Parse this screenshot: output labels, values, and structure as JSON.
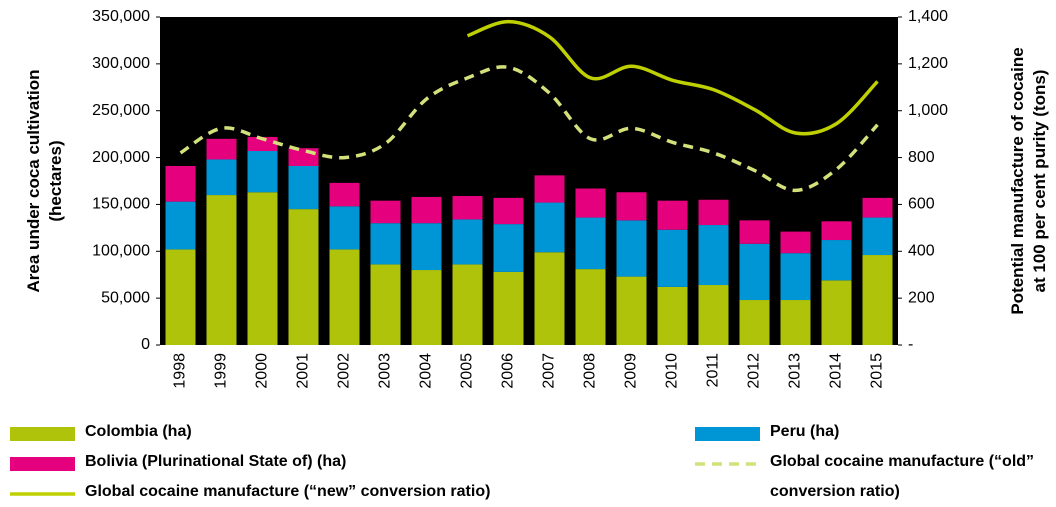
{
  "chart_data": {
    "type": "bar",
    "y_label": [
      "Area under coca cultivation",
      "(hectares)"
    ],
    "y2_label": [
      "Potential manufacture of cocaine",
      "at 100 per cent purity (tons)"
    ],
    "categories": [
      "1998",
      "1999",
      "2000",
      "2001",
      "2002",
      "2003",
      "2004",
      "2005",
      "2006",
      "2007",
      "2008",
      "2009",
      "2010",
      "2011",
      "2012",
      "2013",
      "2014",
      "2015"
    ],
    "series": [
      {
        "name": "Colombia (ha)",
        "color": "#aec30a",
        "type": "bar",
        "values": [
          102000,
          160000,
          163000,
          145000,
          102000,
          86000,
          80000,
          86000,
          78000,
          99000,
          81000,
          73000,
          62000,
          64000,
          48000,
          48000,
          69000,
          96000
        ]
      },
      {
        "name": "Peru (ha)",
        "color": "#0096d6",
        "type": "bar",
        "values": [
          51000,
          38000,
          44000,
          46000,
          46000,
          44000,
          50000,
          48000,
          51000,
          53000,
          55000,
          60000,
          61000,
          64000,
          60000,
          50000,
          43000,
          40000
        ]
      },
      {
        "name": "Bolivia (Plurinational State of) (ha)",
        "color": "#e5007e",
        "type": "bar",
        "values": [
          38000,
          22000,
          15000,
          19000,
          25000,
          24000,
          28000,
          25000,
          28000,
          29000,
          31000,
          30000,
          31000,
          27000,
          25000,
          23000,
          20000,
          21000
        ]
      },
      {
        "name": "Global cocaine manufacture (“new” conversion ratio)",
        "color": "#bfd000",
        "type": "line",
        "axis": "y2",
        "dashed": false,
        "values": [
          null,
          null,
          null,
          null,
          null,
          null,
          null,
          1320,
          1380,
          1315,
          1140,
          1190,
          1130,
          1090,
          1005,
          905,
          945,
          1125
        ]
      },
      {
        "name": "Global cocaine manufacture (“old” conversion ratio)",
        "color": "#d4e07a",
        "type": "line",
        "axis": "y2",
        "dashed": true,
        "values": [
          820,
          925,
          880,
          830,
          800,
          860,
          1050,
          1140,
          1185,
          1075,
          880,
          925,
          865,
          820,
          745,
          660,
          750,
          940
        ]
      }
    ],
    "ylim": [
      0,
      350000
    ],
    "yticks": [
      0,
      {
        "value": 50000,
        "label": "50,000"
      },
      {
        "value": 100000,
        "label": "100,000"
      },
      {
        "value": 150000,
        "label": "150,000"
      },
      {
        "value": 200000,
        "label": "200,000"
      },
      {
        "value": 250000,
        "label": "250,000"
      },
      {
        "value": 300000,
        "label": "300,000"
      },
      {
        "value": 350000,
        "label": "350,000"
      }
    ],
    "y2lim": [
      0,
      1400
    ],
    "y2ticks": [
      {
        "value": 0,
        "label": "-"
      },
      200,
      400,
      600,
      800,
      {
        "value": 1000,
        "label": "1,000"
      },
      {
        "value": 1200,
        "label": "1,200"
      },
      {
        "value": 1400,
        "label": "1,400"
      }
    ],
    "plot_background": "#000000"
  }
}
